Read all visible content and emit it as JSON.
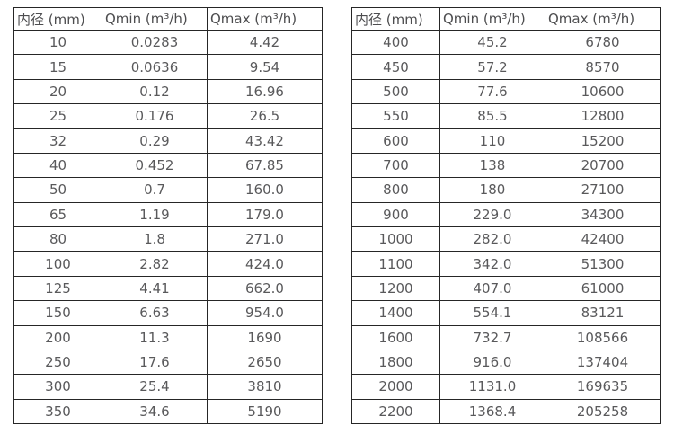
{
  "colors": {
    "border": "#262626",
    "header_text": "#4d4d4f",
    "cell_text": "#59595b",
    "background": "#ffffff"
  },
  "tables": [
    {
      "name": "small-diameter-flow-table",
      "headers": [
        "内径 (mm)",
        "Qmin (m³/h)",
        "Qmax (m³/h)"
      ],
      "rows": [
        [
          "10",
          "0.0283",
          "4.42"
        ],
        [
          "15",
          "0.0636",
          "9.54"
        ],
        [
          "20",
          "0.12",
          "16.96"
        ],
        [
          "25",
          "0.176",
          "26.5"
        ],
        [
          "32",
          "0.29",
          "43.42"
        ],
        [
          "40",
          "0.452",
          "67.85"
        ],
        [
          "50",
          "0.7",
          "160.0"
        ],
        [
          "65",
          "1.19",
          "179.0"
        ],
        [
          "80",
          "1.8",
          "271.0"
        ],
        [
          "100",
          "2.82",
          "424.0"
        ],
        [
          "125",
          "4.41",
          "662.0"
        ],
        [
          "150",
          "6.63",
          "954.0"
        ],
        [
          "200",
          "11.3",
          "1690"
        ],
        [
          "250",
          "17.6",
          "2650"
        ],
        [
          "300",
          "25.4",
          "3810"
        ],
        [
          "350",
          "34.6",
          "5190"
        ]
      ]
    },
    {
      "name": "large-diameter-flow-table",
      "headers": [
        "内径 (mm)",
        "Qmin (m³/h)",
        "Qmax (m³/h)"
      ],
      "rows": [
        [
          "400",
          "45.2",
          "6780"
        ],
        [
          "450",
          "57.2",
          "8570"
        ],
        [
          "500",
          "77.6",
          "10600"
        ],
        [
          "550",
          "85.5",
          "12800"
        ],
        [
          "600",
          "110",
          "15200"
        ],
        [
          "700",
          "138",
          "20700"
        ],
        [
          "800",
          "180",
          "27100"
        ],
        [
          "900",
          "229.0",
          "34300"
        ],
        [
          "1000",
          "282.0",
          "42400"
        ],
        [
          "1100",
          "342.0",
          "51300"
        ],
        [
          "1200",
          "407.0",
          "61000"
        ],
        [
          "1400",
          "554.1",
          "83121"
        ],
        [
          "1600",
          "732.7",
          "108566"
        ],
        [
          "1800",
          "916.0",
          "137404"
        ],
        [
          "2000",
          "1131.0",
          "169635"
        ],
        [
          "2200",
          "1368.4",
          "205258"
        ]
      ]
    }
  ]
}
